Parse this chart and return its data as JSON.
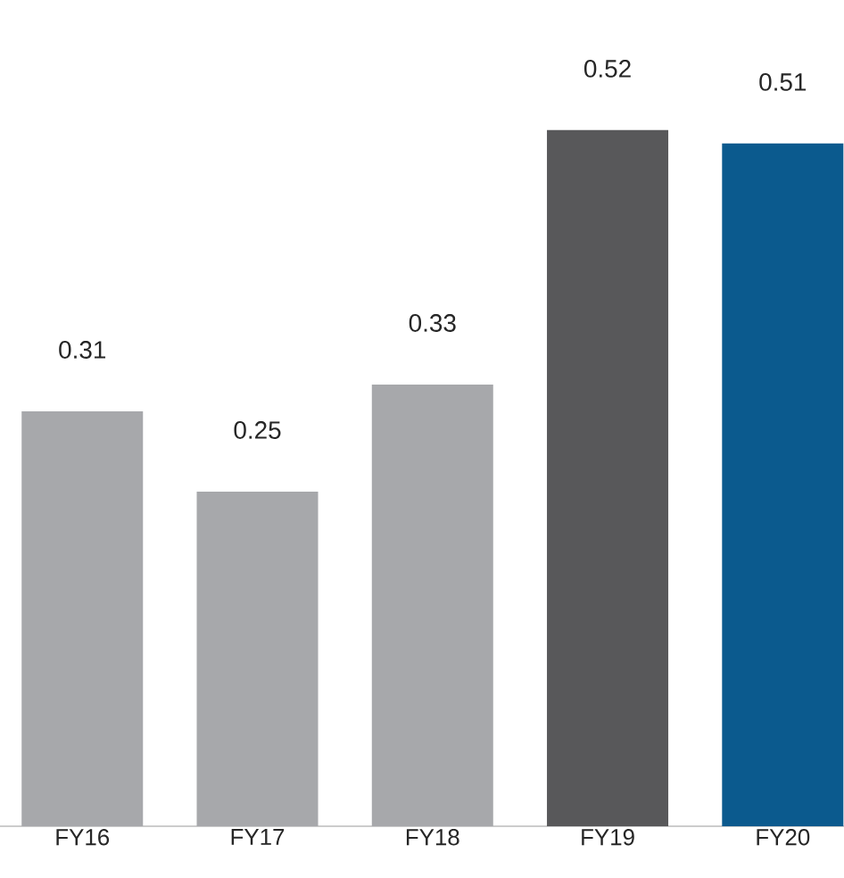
{
  "chart_data": {
    "type": "bar",
    "categories": [
      "FY16",
      "FY17",
      "FY18",
      "FY19",
      "FY20"
    ],
    "values": [
      0.31,
      0.25,
      0.33,
      0.52,
      0.51
    ],
    "colors": [
      "#a7a8ab",
      "#a7a8ab",
      "#a7a8ab",
      "#58585a",
      "#0b5a8e"
    ],
    "data_labels": true,
    "tick_labels": "x"
  }
}
